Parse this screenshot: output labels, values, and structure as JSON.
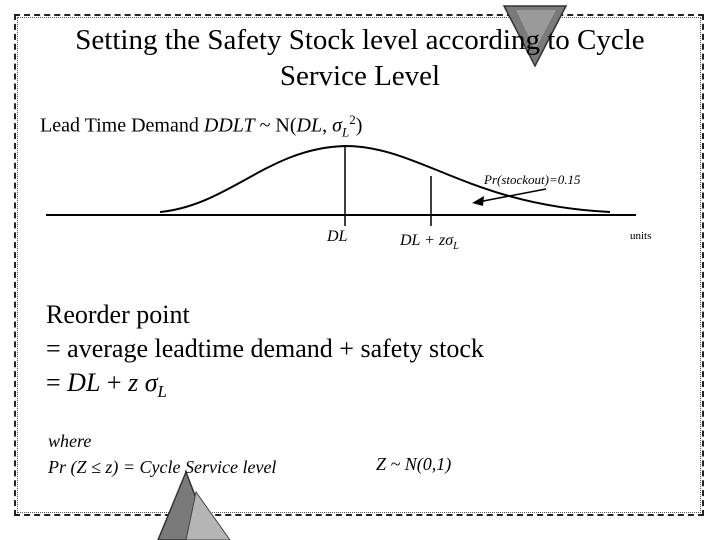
{
  "slide": {
    "title_line1": "Setting the Safety Stock level according to Cycle",
    "title_line2": "Service Level",
    "lead_time_demand": {
      "prefix": "Lead Time Demand ",
      "var": "DDLT",
      "tilde": " ~ N(",
      "mean": "DL",
      "comma": ", ",
      "sigma": "σ",
      "sigma_sub": "L",
      "sup": "2",
      "close": ")"
    },
    "diagram": {
      "stockout_label": "Pr(stockout)=0.15",
      "mean_label": "DL",
      "reorder_label_prefix": "DL + z",
      "reorder_label_sigma": "σ",
      "reorder_label_sub": "L",
      "axis_unit": "units"
    },
    "reorder": {
      "line1": "Reorder point",
      "line2": "= average leadtime demand + safety stock",
      "line3_prefix": "=  ",
      "line3_var": "DL",
      "line3_plus": " +   ",
      "line3_z": "z",
      "line3_sigma": " σ",
      "line3_sub": "L"
    },
    "where": {
      "line1": "where",
      "line2": "Pr (Z ≤ z) = Cycle Service level"
    },
    "z_distribution": "Z ~ N(0,1)"
  },
  "colors": {
    "text": "#000000",
    "triangle_fill": "#7a7a7a",
    "triangle_stroke": "#333333"
  }
}
